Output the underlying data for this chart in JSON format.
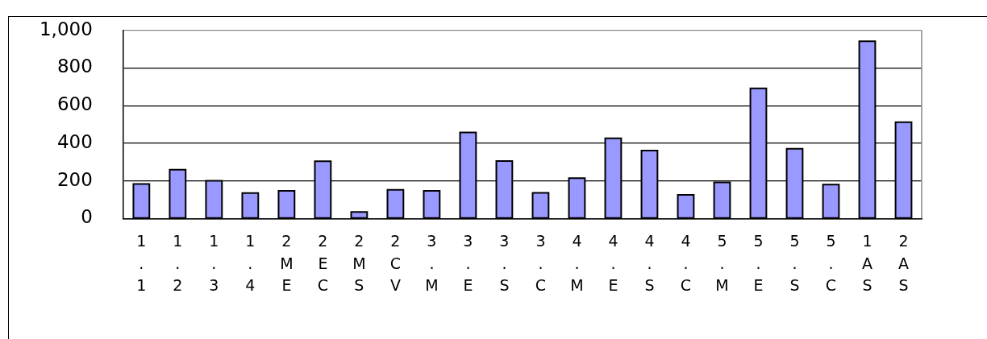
{
  "chart_data": {
    "type": "bar",
    "categories": [
      "1.1",
      "1.2",
      "1.3",
      "1.4",
      "2ME",
      "2EC",
      "2MS",
      "2CV",
      "3.M",
      "3.E",
      "3.S",
      "3.C",
      "4.M",
      "4.E",
      "4.S",
      "4.C",
      "5.M",
      "5.E",
      "5.S",
      "5.C",
      "1AS",
      "2AS"
    ],
    "values": [
      184,
      260,
      201,
      135,
      147,
      304,
      35,
      152,
      147,
      457,
      305,
      136,
      214,
      426,
      361,
      126,
      192,
      692,
      371,
      180,
      942,
      512
    ],
    "color": "#9999ff",
    "ylim": [
      0,
      1000
    ],
    "yticks": [
      0,
      200,
      400,
      600,
      800,
      {
        "value": 1000,
        "label": "1,000"
      }
    ],
    "grid": "y",
    "legend": false
  }
}
